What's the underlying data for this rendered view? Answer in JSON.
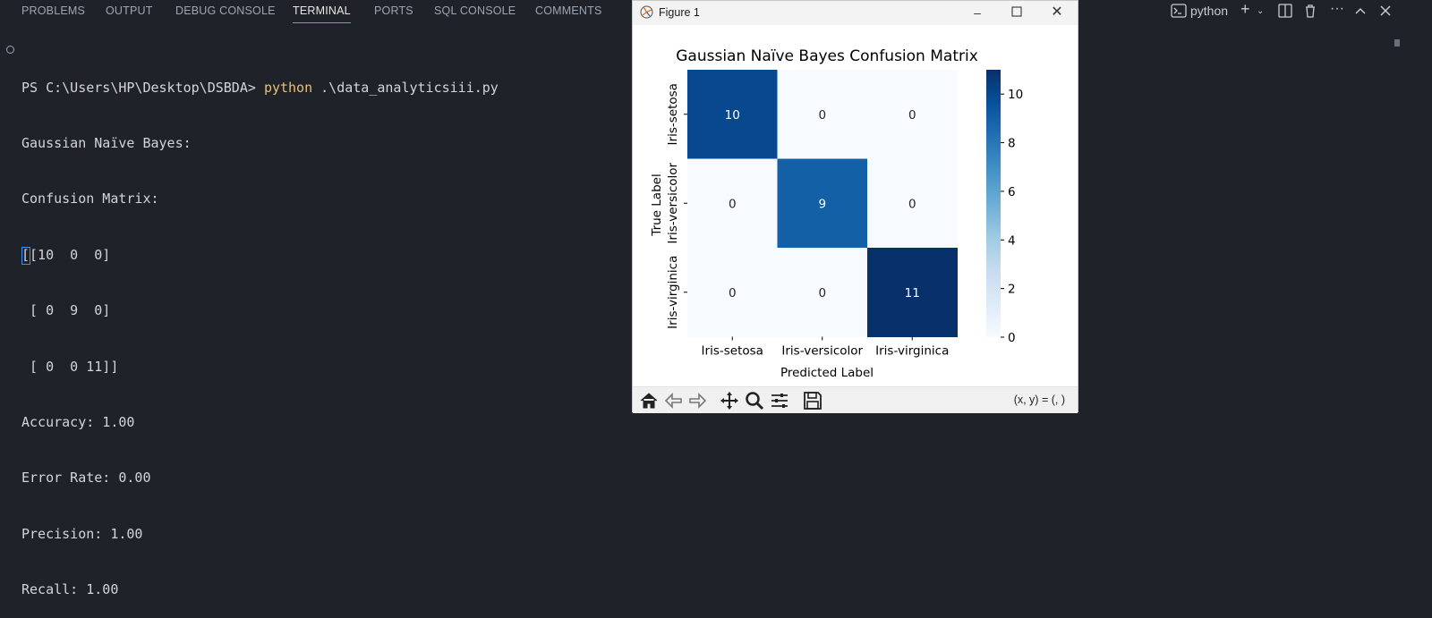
{
  "panel": {
    "tabs": [
      "PROBLEMS",
      "OUTPUT",
      "DEBUG CONSOLE",
      "TERMINAL",
      "PORTS",
      "SQL CONSOLE",
      "COMMENTS"
    ],
    "active_tab": "TERMINAL",
    "terminal_profile": "python"
  },
  "terminal": {
    "prompt": "PS C:\\Users\\HP\\Desktop\\DSBDA> ",
    "command": "python",
    "args": " .\\data_analyticsiii.py",
    "output": [
      "Gaussian Naïve Bayes:",
      "Confusion Matrix:",
      "[[10  0  0]",
      " [ 0  9  0]",
      " [ 0  0 11]]",
      "Accuracy: 1.00",
      "Error Rate: 0.00",
      "Precision: 1.00",
      "Recall: 1.00"
    ]
  },
  "figure": {
    "window_title": "Figure 1",
    "coord_readout": "(x, y) = (, )"
  },
  "chart_data": {
    "type": "heatmap",
    "title": "Gaussian Naïve Bayes Confusion Matrix",
    "xlabel": "Predicted Label",
    "ylabel": "True Label",
    "x_categories": [
      "Iris-setosa",
      "Iris-versicolor",
      "Iris-virginica"
    ],
    "y_categories": [
      "Iris-setosa",
      "Iris-versicolor",
      "Iris-virginica"
    ],
    "values": [
      [
        10,
        0,
        0
      ],
      [
        0,
        9,
        0
      ],
      [
        0,
        0,
        11
      ]
    ],
    "colormap": "Blues",
    "colorbar": {
      "min": 0,
      "max": 11,
      "ticks": [
        0,
        2,
        4,
        6,
        8,
        10
      ]
    },
    "annotations": true,
    "colors": {
      "high": "#08306b",
      "mid": "#1764ab",
      "low": "#f7fbff"
    }
  }
}
